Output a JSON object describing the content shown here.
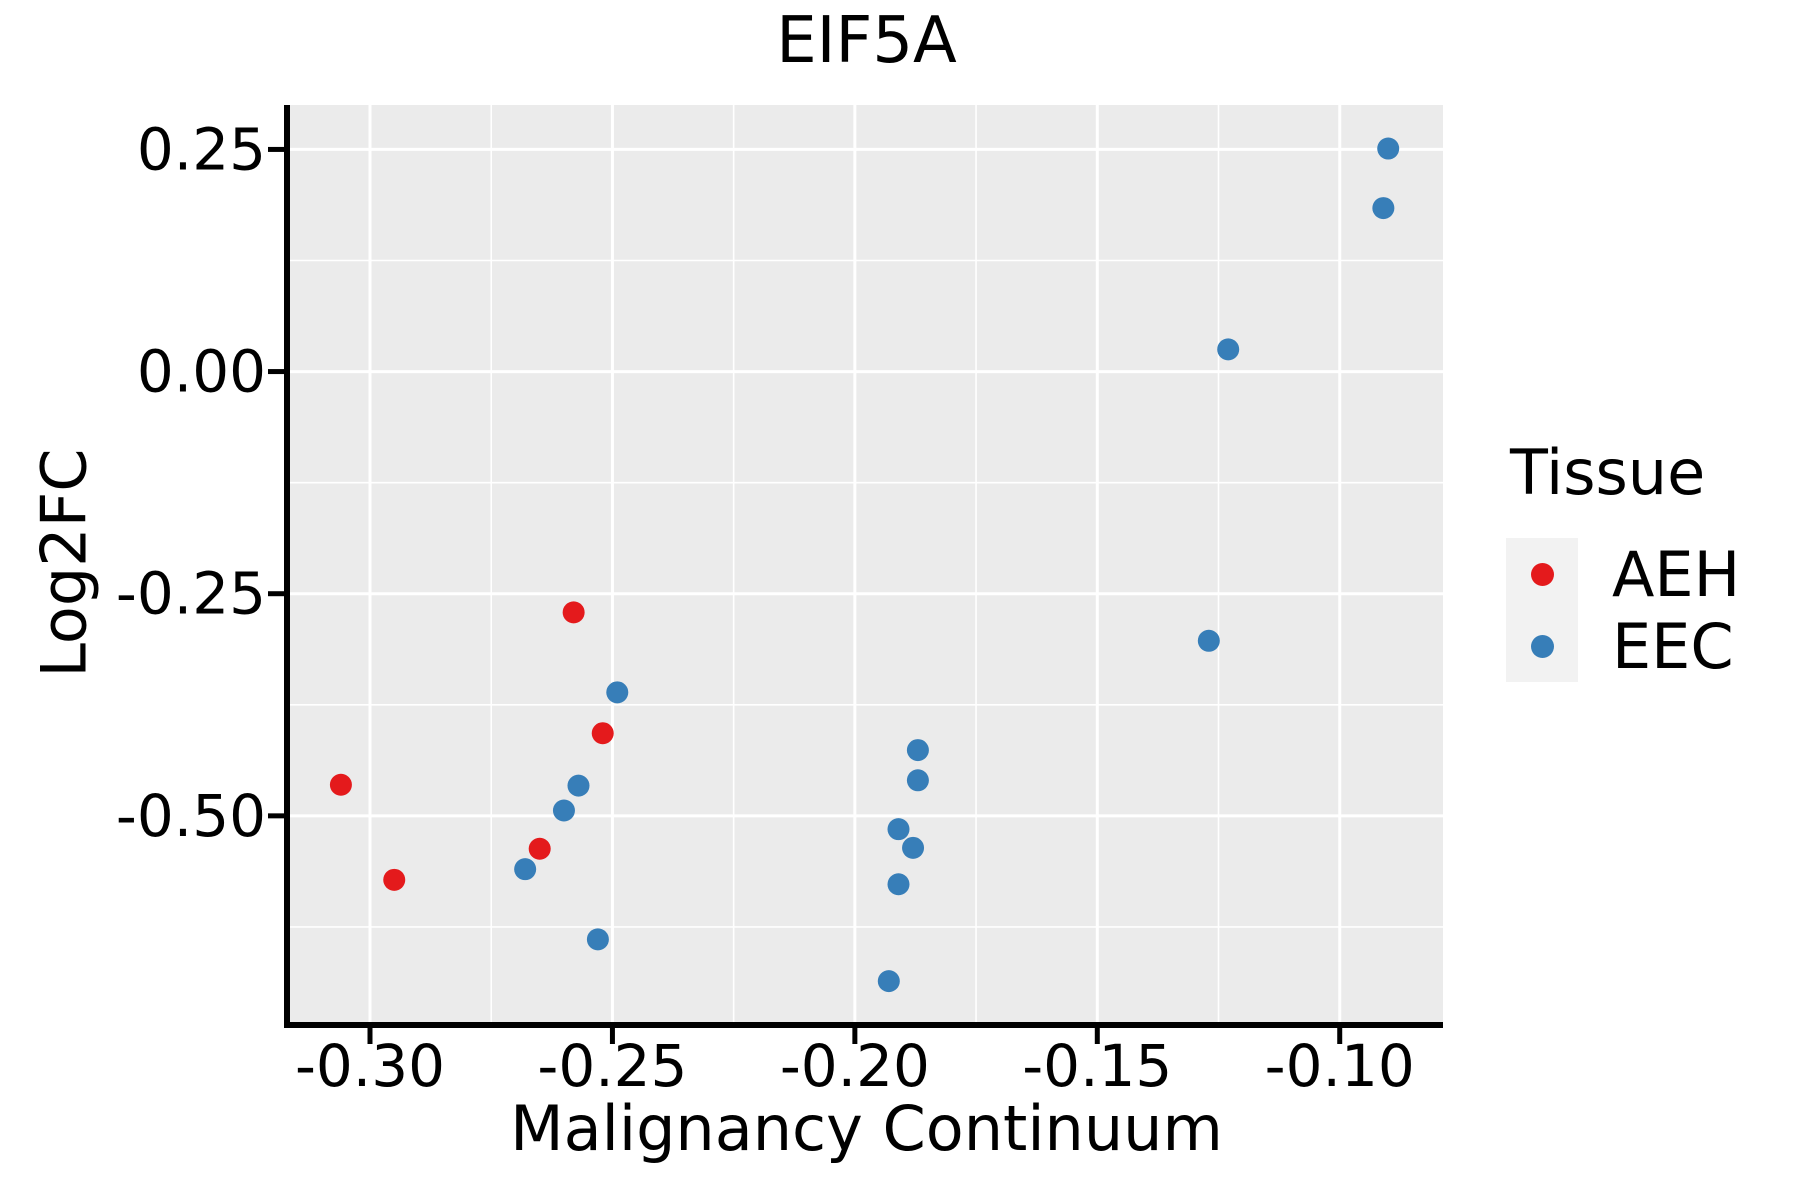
{
  "title": "EIF5A",
  "colors": {
    "aeh": "#E41A1C",
    "eec": "#377EB8",
    "panel_bg": "#EBEBEB",
    "grid_major": "#FFFFFF",
    "grid_minor": "#FFFFFF",
    "legend_key_bg": "#F2F2F2",
    "axis_line": "#000000",
    "text": "#000000"
  },
  "chart_data": {
    "type": "scatter",
    "title": "EIF5A",
    "xlabel": "Malignancy Continuum",
    "ylabel": "Log2FC",
    "xlim": [
      -0.3165,
      -0.0787
    ],
    "ylim": [
      -0.732,
      0.3
    ],
    "x_tick_labels": [
      "-0.30",
      "-0.25",
      "-0.20",
      "-0.15",
      "-0.10"
    ],
    "x_tick_values": [
      -0.3,
      -0.25,
      -0.2,
      -0.15,
      -0.1
    ],
    "y_tick_labels": [
      "0.25",
      "0.00",
      "-0.25",
      "-0.50"
    ],
    "y_tick_values": [
      0.25,
      0.0,
      -0.25,
      -0.5
    ],
    "grid": "white major and minor gridlines on gray panel",
    "legend": {
      "title": "Tissue",
      "position": "right",
      "entries": [
        {
          "label": "AEH",
          "color_key": "aeh"
        },
        {
          "label": "EEC",
          "color_key": "eec"
        }
      ]
    },
    "series": [
      {
        "name": "AEH",
        "color_key": "aeh",
        "points": [
          [
            -0.306,
            -0.465
          ],
          [
            -0.295,
            -0.572
          ],
          [
            -0.265,
            -0.537
          ],
          [
            -0.258,
            -0.271
          ],
          [
            -0.252,
            -0.407
          ]
        ]
      },
      {
        "name": "EEC",
        "color_key": "eec",
        "points": [
          [
            -0.268,
            -0.56
          ],
          [
            -0.26,
            -0.494
          ],
          [
            -0.257,
            -0.466
          ],
          [
            -0.253,
            -0.639
          ],
          [
            -0.249,
            -0.361
          ],
          [
            -0.193,
            -0.686
          ],
          [
            -0.191,
            -0.577
          ],
          [
            -0.191,
            -0.515
          ],
          [
            -0.188,
            -0.536
          ],
          [
            -0.187,
            -0.46
          ],
          [
            -0.187,
            -0.426
          ],
          [
            -0.127,
            -0.303
          ],
          [
            -0.123,
            0.025
          ],
          [
            -0.091,
            0.184
          ],
          [
            -0.09,
            0.251
          ]
        ]
      }
    ]
  }
}
